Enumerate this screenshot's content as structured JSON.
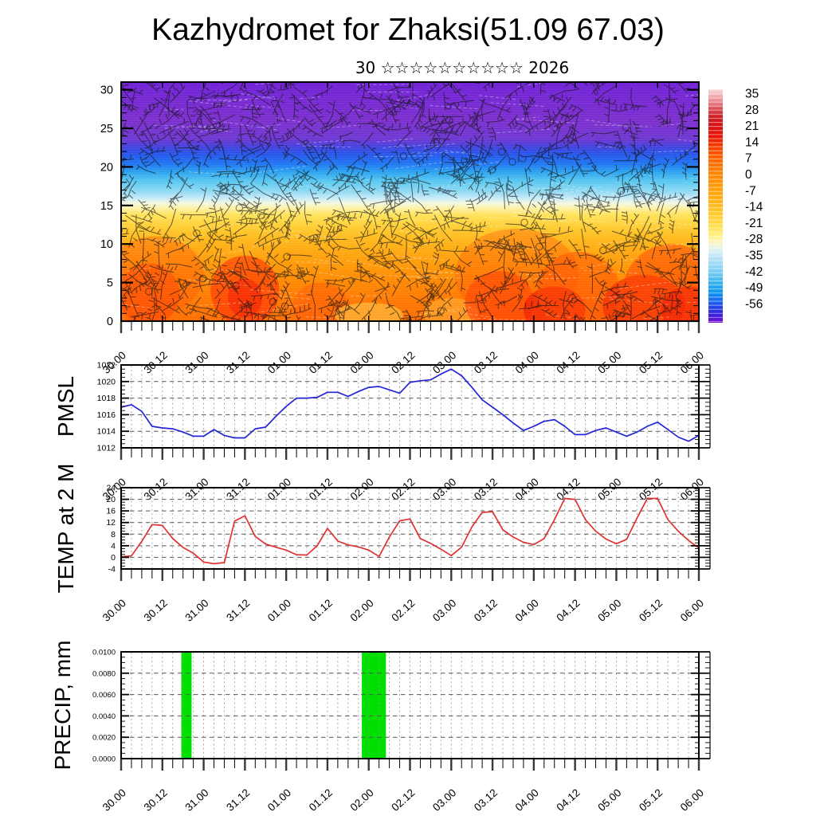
{
  "title": "Kazhydromet for Zhaksi(51.09 67.03)",
  "subtitle": "30 ☆☆☆☆☆☆☆☆☆☆ 2026",
  "x_axis": {
    "labels": [
      "30.00",
      "30.12",
      "31.00",
      "31.12",
      "01.00",
      "01.12",
      "02.00",
      "02.12",
      "03.00",
      "03.12",
      "04.00",
      "04.12",
      "05.00",
      "05.12",
      "06.00"
    ],
    "label_step_hours": 12,
    "minor_step_hours": 3,
    "total_hours": 168
  },
  "chart_data": [
    {
      "type": "heatmap",
      "name": "upper-air-temperature-cross-section-with-wind-barbs",
      "ylim": [
        0,
        31
      ],
      "yticks": [
        0,
        5,
        10,
        15,
        20,
        25,
        30
      ],
      "colorbar": {
        "tick_labels": [
          "35",
          "28",
          "21",
          "14",
          "7",
          "0",
          "-7",
          "-14",
          "-21",
          "-28",
          "-35",
          "-42",
          "-49",
          "-56"
        ],
        "gradient": [
          [
            0,
            "#f9d7da"
          ],
          [
            0.03,
            "#f3aab1"
          ],
          [
            0.06,
            "#e77a82"
          ],
          [
            0.09,
            "#d8444c"
          ],
          [
            0.12,
            "#cd1f27"
          ],
          [
            0.16,
            "#d81313"
          ],
          [
            0.2,
            "#e81507"
          ],
          [
            0.24,
            "#f53c00"
          ],
          [
            0.29,
            "#ff5f00"
          ],
          [
            0.34,
            "#ff7b00"
          ],
          [
            0.4,
            "#ff9404"
          ],
          [
            0.46,
            "#ffab10"
          ],
          [
            0.52,
            "#ffc527"
          ],
          [
            0.58,
            "#ffdd4a"
          ],
          [
            0.625,
            "#fff07e"
          ],
          [
            0.655,
            "#fdf6c2"
          ],
          [
            0.685,
            "#e2f2f2"
          ],
          [
            0.715,
            "#bfe5f8"
          ],
          [
            0.75,
            "#9ad8f6"
          ],
          [
            0.79,
            "#6cc8f2"
          ],
          [
            0.83,
            "#36b2ef"
          ],
          [
            0.87,
            "#0f95ee"
          ],
          [
            0.9,
            "#1a71f2"
          ],
          [
            0.93,
            "#2247e8"
          ],
          [
            0.96,
            "#3222dd"
          ],
          [
            0.985,
            "#5b14d6"
          ],
          [
            1,
            "#7a10d0"
          ]
        ]
      },
      "band_stops": [
        [
          31,
          "#6e1fd6"
        ],
        [
          26,
          "#7a2ccd"
        ],
        [
          23.6,
          "#6c35d2"
        ],
        [
          22.6,
          "#4040dd"
        ],
        [
          21.6,
          "#2355ea"
        ],
        [
          20.4,
          "#1d74f2"
        ],
        [
          19.3,
          "#2aa3ef"
        ],
        [
          18.2,
          "#55c6f0"
        ],
        [
          16.8,
          "#8fd9f3"
        ],
        [
          15.9,
          "#c9ebf8"
        ],
        [
          15.3,
          "#f2f8e0"
        ],
        [
          14.7,
          "#fdf2a9"
        ],
        [
          13.8,
          "#ffe25a"
        ],
        [
          12.6,
          "#ffd23a"
        ],
        [
          11,
          "#ffbc1d"
        ],
        [
          9,
          "#ffa70e"
        ],
        [
          7,
          "#ff9604"
        ],
        [
          5,
          "#ff8700"
        ],
        [
          2.5,
          "#ff7600"
        ],
        [
          0,
          "#ff6b00"
        ]
      ],
      "hot_spots": [
        [
          8,
          3.5,
          9,
          4,
          "#ff3c00",
          0.55
        ],
        [
          10,
          6,
          14,
          5,
          "#ff5200",
          0.4
        ],
        [
          36,
          4,
          10,
          4.5,
          "#ff2e00",
          0.6
        ],
        [
          36,
          3,
          5,
          2.5,
          "#f01800",
          0.55
        ],
        [
          58,
          2,
          8,
          3,
          "#ff5500",
          0.45
        ],
        [
          72,
          0.8,
          10,
          1.6,
          "#ffd84e",
          0.5
        ],
        [
          96,
          1,
          8,
          2,
          "#ffd84e",
          0.35
        ],
        [
          110,
          2.5,
          10,
          4,
          "#ff2e00",
          0.55
        ],
        [
          115,
          6,
          18,
          6,
          "#ff5200",
          0.35
        ],
        [
          126,
          1.5,
          9,
          3,
          "#ee1500",
          0.65
        ],
        [
          133,
          4,
          12,
          5,
          "#ff4400",
          0.45
        ],
        [
          152,
          2,
          12,
          4,
          "#ee1500",
          0.55
        ],
        [
          160,
          4,
          14,
          6,
          "#ff3c00",
          0.5
        ],
        [
          165,
          1.5,
          8,
          3,
          "#ee1500",
          0.55
        ]
      ]
    },
    {
      "type": "line",
      "name": "PMSL",
      "ylim": [
        1012,
        1022
      ],
      "yticks": [
        1012,
        1014,
        1016,
        1018,
        1020,
        1022
      ],
      "grid": [
        1014,
        1016,
        1018,
        1020
      ],
      "minor_step": 0.5,
      "step_hours": 3,
      "color": "#2525d8",
      "values": [
        1016.9,
        1017.2,
        1016.4,
        1014.6,
        1014.4,
        1014.3,
        1013.9,
        1013.4,
        1013.4,
        1014.2,
        1013.5,
        1013.2,
        1013.2,
        1014.3,
        1014.5,
        1015.8,
        1017.0,
        1018.0,
        1018.0,
        1018.1,
        1018.7,
        1018.7,
        1018.2,
        1018.8,
        1019.3,
        1019.4,
        1019.0,
        1018.6,
        1019.9,
        1020.1,
        1020.2,
        1020.9,
        1021.5,
        1020.7,
        1019.3,
        1017.8,
        1016.9,
        1016.0,
        1015.0,
        1014.1,
        1014.6,
        1015.2,
        1015.4,
        1014.6,
        1013.6,
        1013.6,
        1014.1,
        1014.4,
        1013.9,
        1013.4,
        1013.9,
        1014.6,
        1015.1,
        1014.2,
        1013.3,
        1012.8,
        1013.5
      ]
    },
    {
      "type": "line",
      "name": "TEMP at 2 M",
      "ylim": [
        -4,
        24
      ],
      "yticks": [
        -4,
        0,
        4,
        8,
        12,
        16,
        20,
        24
      ],
      "grid": [
        0,
        4,
        8,
        12,
        16,
        20
      ],
      "minor_step": 1,
      "step_hours": 3,
      "color": "#e03232",
      "values": [
        0.2,
        0.5,
        5.5,
        11.3,
        11.0,
        6.5,
        3.4,
        1.4,
        -1.6,
        -2.2,
        -1.8,
        12.5,
        14.3,
        7.2,
        4.6,
        3.5,
        2.5,
        0.9,
        0.8,
        4.0,
        10.0,
        5.6,
        4.3,
        3.6,
        2.5,
        0.3,
        7.0,
        12.6,
        13.2,
        6.5,
        4.8,
        2.8,
        0.6,
        3.5,
        10.5,
        15.5,
        15.7,
        9.5,
        7.0,
        5.2,
        4.4,
        6.5,
        13.0,
        20.3,
        20.0,
        13.0,
        9.0,
        6.3,
        4.7,
        6.2,
        13.5,
        20.3,
        20.3,
        13.0,
        9.0,
        5.8,
        3.2
      ]
    },
    {
      "type": "bar",
      "name": "PRECIP, mm",
      "ylim": [
        0,
        0.01
      ],
      "ytick_labels": [
        "0.0000",
        "0.0020",
        "0.0040",
        "0.0060",
        "0.0080",
        "0.0100"
      ],
      "yticks": [
        0,
        0.002,
        0.004,
        0.006,
        0.008,
        0.01
      ],
      "grid": [
        0.002,
        0.004,
        0.006,
        0.008
      ],
      "minor_step": 0.0005,
      "color": "#00e000",
      "bars": [
        {
          "start_hour": 17.5,
          "end_hour": 20.5,
          "value": 0.01
        },
        {
          "start_hour": 70,
          "end_hour": 77,
          "value": 0.01
        }
      ]
    }
  ]
}
